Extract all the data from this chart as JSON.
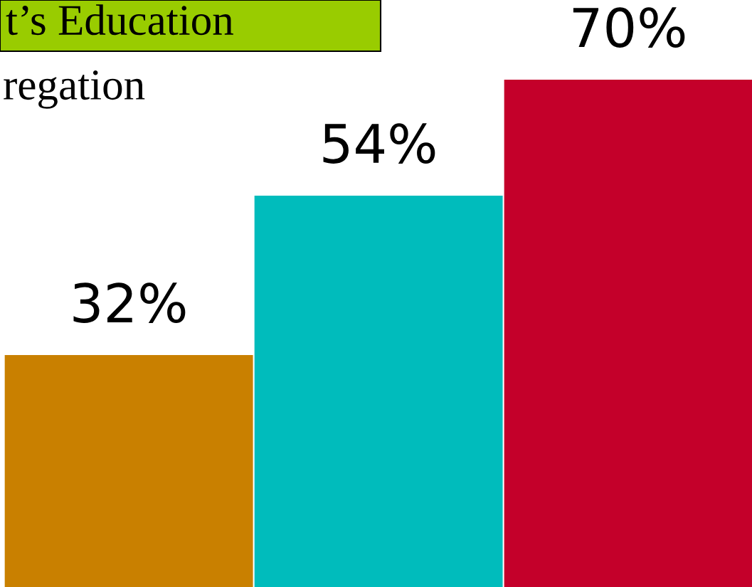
{
  "chart_data": {
    "type": "bar",
    "title": "t’s Education",
    "subtitle": "regation",
    "categories": [
      null,
      null,
      null
    ],
    "values": [
      32,
      54,
      70
    ],
    "colors": [
      "#c98000",
      "#00bcbc",
      "#c4002a"
    ],
    "value_labels": [
      "32%",
      "54%",
      "70%"
    ],
    "ylim": [
      0,
      81
    ],
    "grid": false,
    "legend": false
  }
}
